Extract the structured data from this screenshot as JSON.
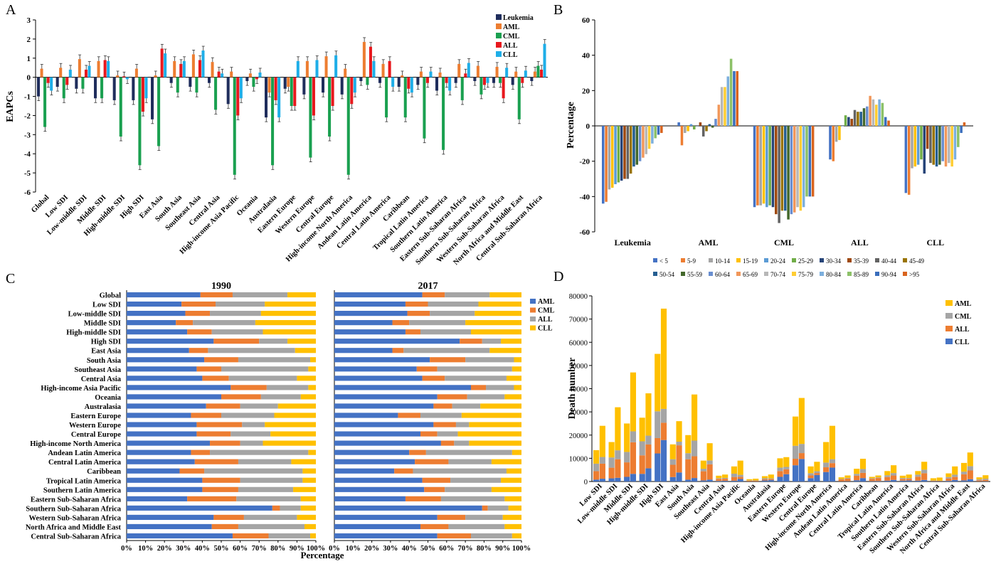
{
  "colors": {
    "Leukemia": "#1f2d5c",
    "AML": "#ed7d31",
    "CML": "#1aa050",
    "ALL": "#e8181d",
    "CLL": "#1eaee8",
    "C_AML": "#4472c4",
    "C_CML": "#ed7d31",
    "C_ALL": "#a5a5a5",
    "C_CLL": "#ffc000",
    "D_AML": "#ffc000",
    "D_CML": "#a5a5a5",
    "D_ALL": "#ed7d31",
    "D_CLL": "#4472c4",
    "ages": [
      "#4472c4",
      "#ed7d31",
      "#a5a5a5",
      "#ffc000",
      "#5b9bd5",
      "#70ad47",
      "#264478",
      "#9e480e",
      "#636363",
      "#997300",
      "#255e91",
      "#43682b",
      "#698ed0",
      "#f1975a",
      "#b7b7b7",
      "#ffcd33",
      "#7cafdd",
      "#8cc168",
      "#3a6ebc",
      "#d9641e"
    ]
  },
  "chart_data": [
    {
      "panel_label": "A",
      "type": "bar",
      "ylabel": "EAPCs",
      "ylim": [
        -6,
        3
      ],
      "yticks": [
        3,
        2,
        1,
        0,
        -1,
        -2,
        -3,
        -4,
        -5,
        -6
      ],
      "legend": [
        "Leukemia",
        "AML",
        "CML",
        "ALL",
        "CLL"
      ],
      "legend_position": "top-right",
      "categories": [
        "Global",
        "Low SDI",
        "Low-middle SDI",
        "Middle SDI",
        "High-middle SDI",
        "High SDI",
        "East Asia",
        "South Asia",
        "Southeast Asia",
        "Central Asia",
        "High-income Asia Pacific",
        "Oceania",
        "Australasia",
        "Eastern Europe",
        "Western Europe",
        "Central Europe",
        "High-income North America",
        "Andean Latin America",
        "Central Latin America",
        "Caribbean",
        "Tropical Latin America",
        "Southern Latin America",
        "Eastern Sub-Saharan Africa",
        "Southern Sub-Saharan Africa",
        "Western Sub-Saharan Africa",
        "North Africa and  Middle East",
        "Central Sub-Saharan Africa"
      ],
      "series": [
        {
          "name": "Leukemia",
          "values": [
            -1.0,
            -0.5,
            -0.6,
            -1.1,
            -1.2,
            -1.2,
            -2.2,
            -0.3,
            -0.5,
            -0.3,
            -1.4,
            -0.2,
            -2.1,
            -0.6,
            -0.9,
            -0.8,
            -0.9,
            -0.2,
            -0.3,
            -0.5,
            -0.4,
            -0.7,
            -0.3,
            -0.2,
            -0.3,
            -0.4,
            -0.2
          ]
        },
        {
          "name": "AML",
          "values": [
            0.45,
            0.5,
            0.95,
            0.85,
            0.1,
            0.45,
            0.1,
            0.85,
            1.2,
            0.8,
            0.3,
            0.2,
            -0.8,
            -0.5,
            0.85,
            1.1,
            0.45,
            1.85,
            0.7,
            0.1,
            0.3,
            0.25,
            0.7,
            0.6,
            0.55,
            0.3,
            0.3
          ]
        },
        {
          "name": "CML",
          "values": [
            -2.6,
            -1.1,
            -0.6,
            -1.1,
            -3.1,
            -4.6,
            -3.6,
            -0.8,
            -0.8,
            -1.7,
            -5.1,
            -0.5,
            -4.6,
            -1.5,
            -4.2,
            -3.1,
            -5.1,
            -0.4,
            -2.1,
            -2.1,
            -3.2,
            -3.8,
            -1.2,
            -0.9,
            -0.3,
            -2.2,
            0.6
          ]
        },
        {
          "name": "ALL",
          "values": [
            -0.3,
            -0.4,
            0.4,
            0.9,
            0.05,
            -1.8,
            1.5,
            0.7,
            0.9,
            0.3,
            -2.0,
            -0.1,
            -1.2,
            -1.5,
            -2.0,
            -1.5,
            -1.4,
            1.6,
            0.85,
            -0.6,
            -0.3,
            -0.3,
            0.2,
            -0.4,
            -1.1,
            -0.3,
            0.4
          ]
        },
        {
          "name": "CLL",
          "values": [
            -0.7,
            0.4,
            0.6,
            0.85,
            -0.1,
            -1.1,
            1.25,
            0.85,
            1.4,
            0.2,
            -1.1,
            0.25,
            -2.1,
            0.85,
            0.9,
            1.15,
            -0.8,
            0.85,
            -0.5,
            -0.8,
            0.3,
            -0.7,
            0.75,
            -0.3,
            0.5,
            0.35,
            1.75
          ]
        }
      ]
    },
    {
      "panel_label": "B",
      "type": "bar",
      "ylabel": "Percentage",
      "ylim": [
        -60,
        60
      ],
      "yticks": [
        60,
        40,
        20,
        0,
        -20,
        -40,
        -60
      ],
      "categories": [
        "Leukemia",
        "AML",
        "CML",
        "ALL",
        "CLL"
      ],
      "series_names": [
        "< 5",
        "5-9",
        "10-14",
        "15-19",
        "20-24",
        "25-29",
        "30-34",
        "35-39",
        "40-44",
        "45-49",
        "50-54",
        "55-59",
        "60-64",
        "65-69",
        "70-74",
        "75-79",
        "80-84",
        "85-89",
        "90-94",
        ">95"
      ],
      "values": [
        [
          -44,
          -43,
          -36,
          -35,
          -33,
          -32,
          -31,
          -30,
          -30,
          -27,
          -23,
          -22,
          -20,
          -18,
          -16,
          -13,
          -10,
          -7,
          -5,
          -4
        ],
        [
          2,
          -11,
          -4,
          -3,
          1,
          -2,
          0,
          2,
          -6,
          -3,
          1,
          -1,
          4,
          12,
          22,
          22,
          28,
          38,
          31,
          31
        ],
        [
          -46,
          -45,
          -45,
          -44,
          -46,
          -45,
          -46,
          -50,
          -55,
          -48,
          -48,
          -53,
          -50,
          -49,
          -46,
          -48,
          -46,
          -40,
          -40,
          -40
        ],
        [
          -19,
          -20,
          -9,
          -8,
          0,
          6,
          5,
          4,
          9,
          8,
          8,
          10,
          11,
          17,
          15,
          12,
          15,
          13,
          5,
          3
        ],
        [
          -38,
          -39,
          -24,
          -23,
          -22,
          -19,
          -27,
          -13,
          -21,
          -22,
          -23,
          -22,
          -20,
          -23,
          -21,
          -23,
          -19,
          -12,
          -4,
          2
        ]
      ],
      "x_value_notes": []
    },
    {
      "panel_label": "C",
      "type": "bar",
      "xlabel": "Percentage",
      "xticks": [
        "0%",
        "10%",
        "20%",
        "30%",
        "40%",
        "50%",
        "60%",
        "70%",
        "80%",
        "90%",
        "100%"
      ],
      "subtitles": [
        "1990",
        "2017"
      ],
      "legend": [
        "AML",
        "CML",
        "ALL",
        "CLL"
      ],
      "categories": [
        "Global",
        "Low SDI",
        "Low-middle SDI",
        "Middle SDI",
        "High-middle SDI",
        "High SDI",
        "East Asia",
        "South Asia",
        "Southeast Asia",
        "Central Asia",
        "High-income Asia Pacific",
        "Oceania",
        "Australasia",
        "Eastern Europe",
        "Western Europe",
        "Central Europe",
        "High-income North America",
        "Andean Latin  America",
        "Central Latin America",
        "Caribbean",
        "Tropical Latin America",
        "Southern Latin  America",
        "Eastern Sub-Saharan Africa",
        "Southern Sub-Saharan Africa",
        "Western Sub-Saharan Africa",
        "North Africa and Middle East",
        "Central Sub-Saharan Africa"
      ],
      "y1990": [
        [
          39,
          17,
          29,
          15
        ],
        [
          29,
          18,
          26,
          27
        ],
        [
          31,
          13,
          27,
          29
        ],
        [
          26,
          9,
          33,
          32
        ],
        [
          32,
          13,
          27,
          28
        ],
        [
          46,
          24,
          15,
          15
        ],
        [
          33,
          10,
          46,
          11
        ],
        [
          41,
          18,
          38,
          3
        ],
        [
          37,
          13,
          46,
          4
        ],
        [
          40,
          14,
          36,
          10
        ],
        [
          55,
          19,
          22,
          4
        ],
        [
          50,
          21,
          21,
          8
        ],
        [
          42,
          18,
          20,
          20
        ],
        [
          34,
          16,
          28,
          22
        ],
        [
          37,
          24,
          12,
          27
        ],
        [
          37,
          18,
          21,
          24
        ],
        [
          44,
          16,
          12,
          28
        ],
        [
          34,
          10,
          52,
          4
        ],
        [
          36,
          23,
          28,
          13
        ],
        [
          28,
          13,
          52,
          7
        ],
        [
          40,
          20,
          33,
          7
        ],
        [
          40,
          19,
          29,
          12
        ],
        [
          32,
          26,
          34,
          8
        ],
        [
          77,
          4,
          11,
          8
        ],
        [
          46,
          16,
          28,
          10
        ],
        [
          45,
          14,
          35,
          6
        ],
        [
          56,
          19,
          22,
          3
        ]
      ],
      "y2017": [
        [
          47,
          12,
          24,
          17
        ],
        [
          38,
          12,
          27,
          23
        ],
        [
          39,
          12,
          24,
          25
        ],
        [
          31,
          9,
          30,
          30
        ],
        [
          38,
          8,
          27,
          27
        ],
        [
          67,
          12,
          10,
          11
        ],
        [
          31,
          6,
          46,
          17
        ],
        [
          51,
          19,
          26,
          4
        ],
        [
          44,
          11,
          40,
          5
        ],
        [
          47,
          12,
          33,
          8
        ],
        [
          73,
          8,
          15,
          4
        ],
        [
          55,
          16,
          20,
          9
        ],
        [
          53,
          10,
          15,
          22
        ],
        [
          34,
          12,
          22,
          32
        ],
        [
          53,
          12,
          7,
          28
        ],
        [
          46,
          9,
          11,
          34
        ],
        [
          57,
          7,
          8,
          28
        ],
        [
          40,
          9,
          46,
          5
        ],
        [
          43,
          18,
          23,
          16
        ],
        [
          32,
          10,
          50,
          8
        ],
        [
          47,
          15,
          27,
          11
        ],
        [
          48,
          11,
          25,
          16
        ],
        [
          38,
          19,
          34,
          9
        ],
        [
          79,
          3,
          11,
          7
        ],
        [
          55,
          15,
          20,
          10
        ],
        [
          46,
          15,
          30,
          9
        ],
        [
          55,
          18,
          22,
          5
        ]
      ]
    },
    {
      "panel_label": "D",
      "type": "bar",
      "ylabel": "Death number",
      "ylim": [
        0,
        80000
      ],
      "yticks": [
        "80000",
        "70000",
        "60000",
        "50000",
        "40000",
        "30000",
        "20000",
        "10000",
        "0"
      ],
      "legend": [
        "AML",
        "CML",
        "ALL",
        "CLL"
      ],
      "legend_position": "top-right",
      "categories": [
        "Low SDI",
        "Low-middle SDI",
        "Middle SDI",
        "High-middle SDI",
        "High SDI",
        "East Asia",
        "South Asia",
        "Southeast Asia",
        "Central Asia",
        "High-income Asia Pacific",
        "Oceania",
        "Australasia",
        "Eastern Europe",
        "Western Europe",
        "Central Europe",
        "High-income North America",
        "Andean Latin America",
        "Central Latin America",
        "Caribbean",
        "Tropical Latin America",
        "Southern Latin America",
        "Eastern Sub-Saharan Africa",
        "Southern Sub-Saharan Africa",
        "Western Sub-Saharan Africa",
        "North Africa and Middle East",
        "Central Sub-Saharan Africa"
      ],
      "totals": [
        [
          13500,
          24000
        ],
        [
          17000,
          32000
        ],
        [
          25000,
          47000
        ],
        [
          27500,
          38000
        ],
        [
          55000,
          74500
        ],
        [
          16000,
          26000
        ],
        [
          20000,
          37500
        ],
        [
          9000,
          16500
        ],
        [
          2500,
          3000
        ],
        [
          6500,
          9000
        ],
        [
          1000,
          1200
        ],
        [
          2300,
          3000
        ],
        [
          10000,
          10500
        ],
        [
          28000,
          36000
        ],
        [
          6500,
          8500
        ],
        [
          17000,
          24000
        ],
        [
          1800,
          2600
        ],
        [
          5500,
          9800
        ],
        [
          2000,
          2600
        ],
        [
          4500,
          7000
        ],
        [
          2500,
          3000
        ],
        [
          4500,
          8500
        ],
        [
          1400,
          1700
        ],
        [
          3500,
          6500
        ],
        [
          8000,
          12500
        ],
        [
          1800,
          2700
        ]
      ],
      "fractions_1990": [
        [
          0.06,
          0.27,
          0.24,
          0.43
        ],
        [
          0.08,
          0.27,
          0.26,
          0.39
        ],
        [
          0.08,
          0.25,
          0.18,
          0.49
        ],
        [
          0.12,
          0.29,
          0.22,
          0.37
        ],
        [
          0.22,
          0.12,
          0.21,
          0.45
        ],
        [
          0.12,
          0.33,
          0.15,
          0.4
        ],
        [
          0.04,
          0.44,
          0.13,
          0.39
        ],
        [
          0.05,
          0.44,
          0.12,
          0.39
        ],
        [
          0.1,
          0.35,
          0.12,
          0.43
        ],
        [
          0.05,
          0.25,
          0.22,
          0.48
        ],
        [
          0.05,
          0.3,
          0.15,
          0.5
        ],
        [
          0.2,
          0.2,
          0.2,
          0.4
        ],
        [
          0.2,
          0.25,
          0.15,
          0.4
        ],
        [
          0.25,
          0.1,
          0.2,
          0.45
        ],
        [
          0.22,
          0.18,
          0.15,
          0.45
        ],
        [
          0.24,
          0.12,
          0.12,
          0.52
        ],
        [
          0.05,
          0.45,
          0.1,
          0.4
        ],
        [
          0.1,
          0.35,
          0.15,
          0.4
        ],
        [
          0.08,
          0.5,
          0.12,
          0.3
        ],
        [
          0.08,
          0.35,
          0.17,
          0.4
        ],
        [
          0.15,
          0.3,
          0.15,
          0.4
        ],
        [
          0.08,
          0.38,
          0.2,
          0.34
        ],
        [
          0.1,
          0.15,
          0.05,
          0.7
        ],
        [
          0.08,
          0.3,
          0.17,
          0.45
        ],
        [
          0.06,
          0.33,
          0.14,
          0.47
        ],
        [
          0.05,
          0.25,
          0.2,
          0.5
        ]
      ],
      "fractions_2017": [
        [
          0.05,
          0.27,
          0.12,
          0.56
        ],
        [
          0.05,
          0.25,
          0.12,
          0.58
        ],
        [
          0.07,
          0.29,
          0.1,
          0.54
        ],
        [
          0.15,
          0.27,
          0.1,
          0.48
        ],
        [
          0.24,
          0.1,
          0.08,
          0.58
        ],
        [
          0.15,
          0.45,
          0.06,
          0.34
        ],
        [
          0.04,
          0.25,
          0.18,
          0.53
        ],
        [
          0.05,
          0.4,
          0.1,
          0.45
        ],
        [
          0.1,
          0.3,
          0.12,
          0.48
        ],
        [
          0.12,
          0.1,
          0.1,
          0.68
        ],
        [
          0.05,
          0.2,
          0.15,
          0.6
        ],
        [
          0.2,
          0.15,
          0.1,
          0.55
        ],
        [
          0.3,
          0.2,
          0.1,
          0.4
        ],
        [
          0.27,
          0.07,
          0.11,
          0.55
        ],
        [
          0.33,
          0.1,
          0.09,
          0.48
        ],
        [
          0.25,
          0.08,
          0.07,
          0.6
        ],
        [
          0.05,
          0.45,
          0.1,
          0.4
        ],
        [
          0.15,
          0.23,
          0.17,
          0.45
        ],
        [
          0.08,
          0.5,
          0.1,
          0.32
        ],
        [
          0.1,
          0.27,
          0.15,
          0.48
        ],
        [
          0.15,
          0.25,
          0.1,
          0.5
        ],
        [
          0.08,
          0.34,
          0.18,
          0.4
        ],
        [
          0.08,
          0.1,
          0.03,
          0.79
        ],
        [
          0.1,
          0.2,
          0.15,
          0.55
        ],
        [
          0.08,
          0.3,
          0.15,
          0.47
        ],
        [
          0.05,
          0.22,
          0.18,
          0.55
        ]
      ]
    }
  ]
}
